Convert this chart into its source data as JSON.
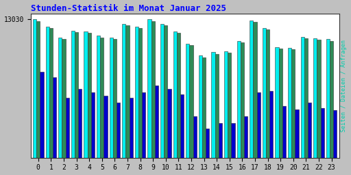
{
  "title": "Stunden-Statistik im Monat Januar 2025",
  "ylabel": "Seiten / Dateien / Anfragen",
  "hours": [
    0,
    1,
    2,
    3,
    4,
    5,
    6,
    7,
    8,
    9,
    10,
    11,
    12,
    13,
    14,
    15,
    16,
    17,
    18,
    19,
    20,
    21,
    22,
    23
  ],
  "y_tick_label": "13030",
  "ytick_val": 13030,
  "bar_cyan": [
    13030,
    12820,
    12500,
    12700,
    12680,
    12550,
    12500,
    12900,
    12820,
    13030,
    12900,
    12680,
    12320,
    11980,
    12080,
    12100,
    12400,
    13000,
    12780,
    12220,
    12200,
    12520,
    12480,
    12450
  ],
  "bar_teal": [
    12980,
    12780,
    12450,
    12650,
    12630,
    12500,
    12450,
    12850,
    12780,
    12980,
    12850,
    12630,
    12270,
    11930,
    12030,
    12060,
    12350,
    12960,
    12730,
    12180,
    12150,
    12480,
    12440,
    12400
  ],
  "bar_blue": [
    11500,
    11350,
    10750,
    11000,
    10900,
    10800,
    10600,
    10750,
    10900,
    11100,
    11000,
    10850,
    10200,
    9850,
    10000,
    10000,
    10200,
    10900,
    10950,
    10500,
    10400,
    10600,
    10450,
    10380
  ],
  "bg_color": "#c0c0c0",
  "plot_bg": "#ffffff",
  "color_cyan": "#00eeee",
  "color_teal": "#2e8b57",
  "color_blue": "#0000cd",
  "title_color": "#0000ff",
  "ylabel_color": "#00ccaa",
  "bar_width": 0.28,
  "ylim_min": 9000,
  "ylim_max": 13200
}
